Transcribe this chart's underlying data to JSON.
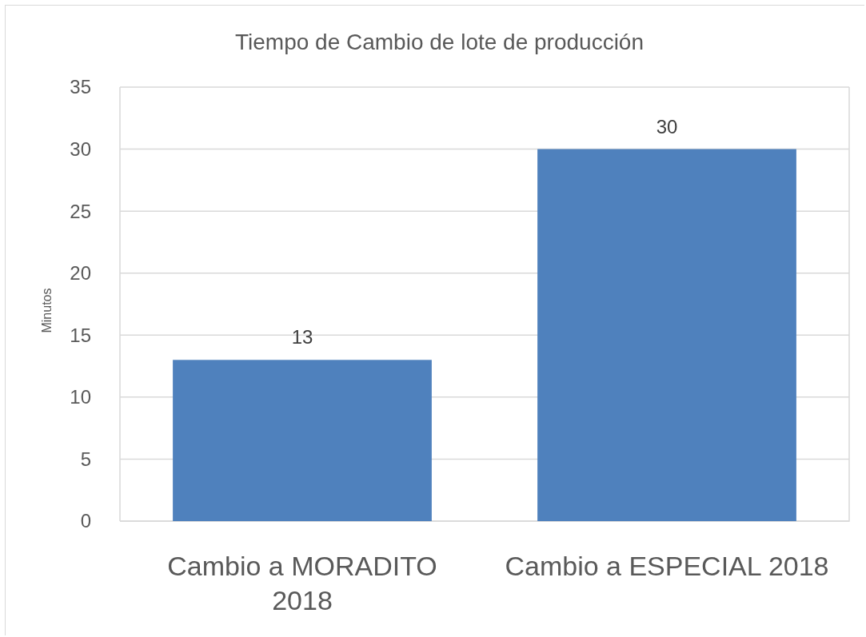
{
  "chart_data": {
    "type": "bar",
    "title": "Tiempo de Cambio de lote de producción",
    "ylabel": "Minutos",
    "categories": [
      "Cambio a MORADITO 2018",
      "Cambio a ESPECIAL 2018"
    ],
    "values": [
      13,
      30
    ],
    "color": "#4f81bd",
    "ylim": [
      0,
      35
    ],
    "yticks": [
      0,
      5,
      10,
      15,
      20,
      25,
      30,
      35
    ],
    "grid": "y",
    "data_labels": true
  }
}
